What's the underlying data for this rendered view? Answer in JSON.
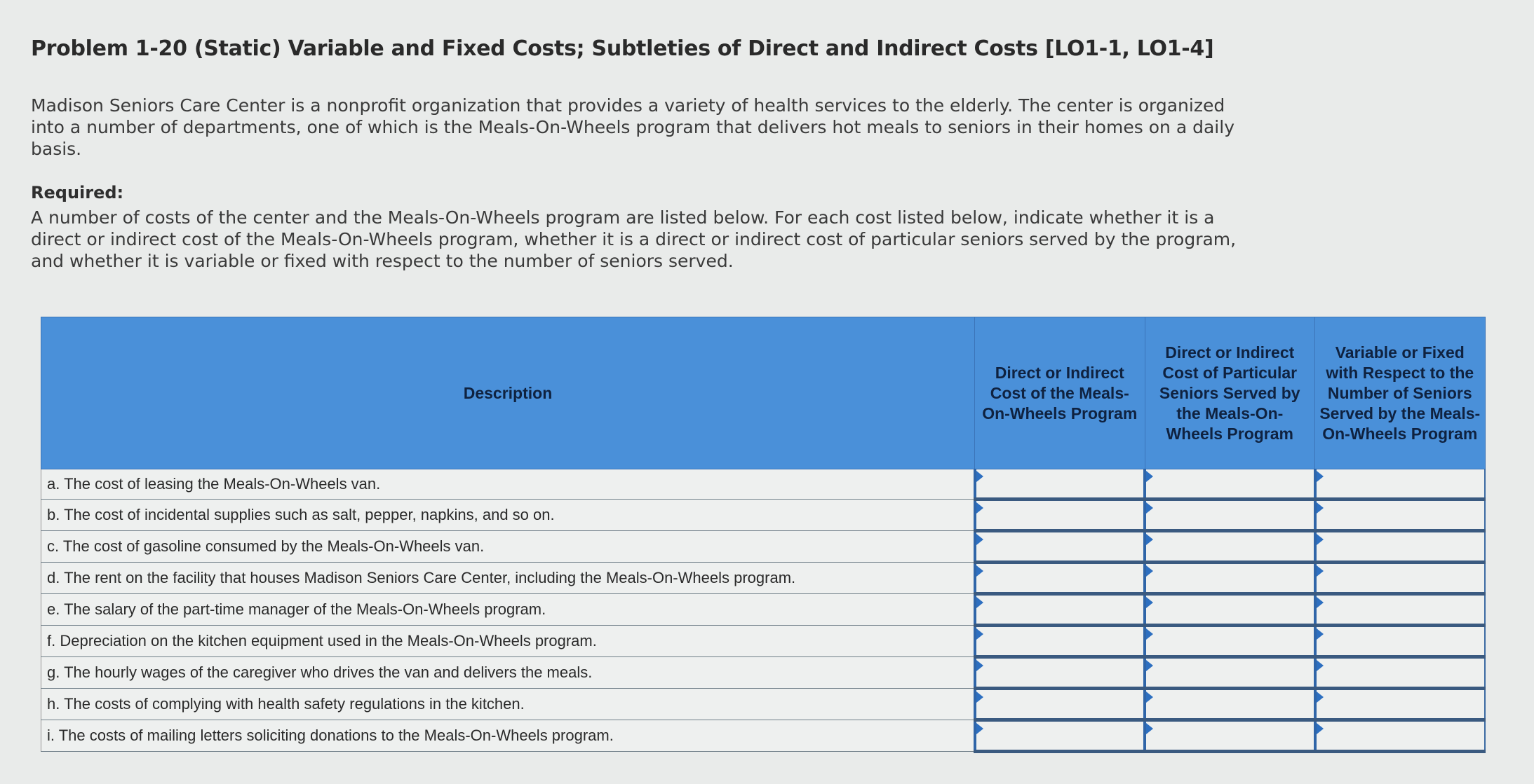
{
  "problem": {
    "title": "Problem 1-20 (Static) Variable and Fixed Costs; Subtleties of Direct and Indirect Costs [LO1-1, LO1-4]",
    "intro": "Madison Seniors Care Center is a nonprofit organization that provides a variety of health services to the elderly. The center is organized into a number of departments, one of which is the Meals-On-Wheels program that delivers hot meals to seniors in their homes on a daily basis.",
    "required_label": "Required:",
    "required_text": "A number of costs of the center and the Meals-On-Wheels program are listed below. For each cost listed below, indicate whether it is a direct or indirect cost of the Meals-On-Wheels program, whether it is a direct or indirect cost of particular seniors served by the program, and whether it is variable or fixed with respect to the number of seniors served."
  },
  "table": {
    "headers": {
      "description": "Description",
      "col1": "Direct or Indirect Cost of the Meals-On-Wheels Program",
      "col2": "Direct or Indirect Cost of Particular Seniors Served by the Meals-On-Wheels Program",
      "col3": "Variable or Fixed with Respect to the Number of Seniors Served by the Meals-On-Wheels Program"
    },
    "rows": [
      {
        "description": "a. The cost of leasing the Meals-On-Wheels van.",
        "col1": "",
        "col2": "",
        "col3": ""
      },
      {
        "description": "b. The cost of incidental supplies such as salt, pepper, napkins, and so on.",
        "col1": "",
        "col2": "",
        "col3": ""
      },
      {
        "description": "c. The cost of gasoline consumed by the Meals-On-Wheels van.",
        "col1": "",
        "col2": "",
        "col3": ""
      },
      {
        "description": "d. The rent on the facility that houses Madison Seniors Care Center, including the Meals-On-Wheels program.",
        "col1": "",
        "col2": "",
        "col3": ""
      },
      {
        "description": "e. The salary of the part-time manager of the Meals-On-Wheels program.",
        "col1": "",
        "col2": "",
        "col3": ""
      },
      {
        "description": "f. Depreciation on the kitchen equipment used in the Meals-On-Wheels program.",
        "col1": "",
        "col2": "",
        "col3": ""
      },
      {
        "description": "g. The hourly wages of the caregiver who drives the van and delivers the meals.",
        "col1": "",
        "col2": "",
        "col3": ""
      },
      {
        "description": "h. The costs of complying with health safety regulations in the kitchen.",
        "col1": "",
        "col2": "",
        "col3": ""
      },
      {
        "description": "i. The costs of mailing letters soliciting donations to the Meals-On-Wheels program.",
        "col1": "",
        "col2": "",
        "col3": ""
      }
    ]
  },
  "colors": {
    "header_bg": "#4a90d9",
    "header_text": "#0f2240",
    "cell_border": "#2f65a8",
    "page_bg": "#e9ebea"
  }
}
